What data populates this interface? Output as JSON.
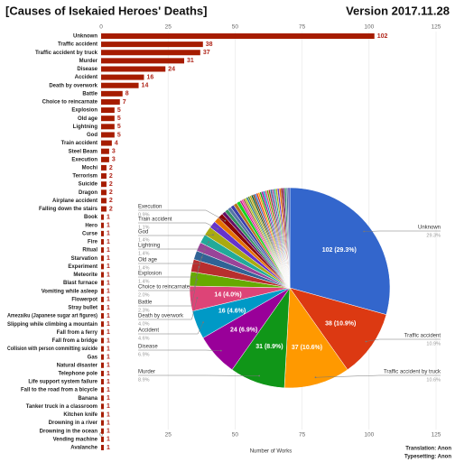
{
  "chart_data": [
    {
      "type": "hbar",
      "title": "[Causes of Isekaied Heroes' Deaths]",
      "subtitle": "Version 2017.11.28",
      "xlabel": "Number of Works",
      "annotations": [
        "Translation: Anon",
        "Typesetting: Anon"
      ],
      "color": "#a61c00",
      "xlim": [
        0,
        125
      ],
      "xticks": [
        0,
        25,
        50,
        75,
        100,
        125
      ],
      "grid": true,
      "categories": [
        "Unknown",
        "Traffic accident",
        "Traffic accident by truck",
        "Murder",
        "Disease",
        "Accident",
        "Death by overwork",
        "Battle",
        "Choice to reincarnate",
        "Explosion",
        "Old age",
        "Lightning",
        "God",
        "Train accident",
        "Steel Beam",
        "Execution",
        "Mochi",
        "Terrorism",
        "Suicide",
        "Dragon",
        "Airplane accident",
        "Falling down the stairs",
        "Book",
        "Hero",
        "Curse",
        "Fire",
        "Ritual",
        "Starvation",
        "Experiment",
        "Meteorite",
        "Blast furnace",
        "Vomiting while asleep",
        "Flowerpot",
        "Stray bullet",
        "Amezaiku (Japanese sugar art figures)",
        "Slipping while climbing a mountain",
        "Fall from a ferry",
        "Fall from a bridge",
        "Collision with person committing suicide",
        "Gas",
        "Natural disaster",
        "Telephone pole",
        "Life support system failure",
        "Fall to the road from a bicycle",
        "Banana",
        "Tanker truck in a classroom",
        "Kitchen knife",
        "Drowning in a river",
        "Drowning in the ocean",
        "Vending machine",
        "Avalanche"
      ],
      "values": [
        102,
        38,
        37,
        31,
        24,
        16,
        14,
        8,
        7,
        5,
        5,
        5,
        5,
        4,
        3,
        3,
        2,
        2,
        2,
        2,
        2,
        2,
        1,
        1,
        1,
        1,
        1,
        1,
        1,
        1,
        1,
        1,
        1,
        1,
        1,
        1,
        1,
        1,
        1,
        1,
        1,
        1,
        1,
        1,
        1,
        1,
        1,
        1,
        1,
        1,
        1
      ]
    },
    {
      "type": "pie",
      "categories": [
        "Unknown",
        "Traffic accident",
        "Traffic accident by truck",
        "Murder",
        "Disease",
        "Accident",
        "Death by overwork",
        "Battle",
        "Choice to reincarnate",
        "Explosion",
        "Old age",
        "Lightning",
        "God",
        "Train accident",
        null,
        "Execution",
        null,
        null,
        null,
        null,
        null,
        null,
        null,
        null,
        null,
        null,
        null,
        null,
        null,
        null,
        null,
        null,
        null,
        null,
        null,
        null,
        null,
        null,
        null,
        null,
        null,
        null,
        null,
        null,
        null,
        null,
        null,
        null,
        null,
        null,
        null
      ],
      "values": [
        102,
        38,
        37,
        31,
        24,
        16,
        14,
        8,
        7,
        5,
        5,
        5,
        5,
        4,
        3,
        3,
        2,
        2,
        2,
        2,
        2,
        2,
        1,
        1,
        1,
        1,
        1,
        1,
        1,
        1,
        1,
        1,
        1,
        1,
        1,
        1,
        1,
        1,
        1,
        1,
        1,
        1,
        1,
        1,
        1,
        1,
        1,
        1,
        1,
        1,
        1
      ],
      "value_labels": [
        "102 (29.3%)",
        "38 (10.9%)",
        "37 (10.6%)",
        "31 (8.9%)",
        "24 (6.9%)",
        "16 (4.6%)",
        "14 (4.0%)",
        null,
        null,
        null,
        null,
        null,
        null,
        null,
        null,
        null,
        null,
        null,
        null,
        null,
        null,
        null,
        null,
        null,
        null,
        null,
        null,
        null,
        null,
        null,
        null,
        null,
        null,
        null,
        null,
        null,
        null,
        null,
        null,
        null,
        null,
        null,
        null,
        null,
        null,
        null,
        null,
        null,
        null,
        null,
        null
      ],
      "percent_labels": [
        "29.3%",
        "10.9%",
        "10.6%",
        "8.9%",
        "6.9%",
        "4.6%",
        "4.0%",
        "2.3%",
        "2.0%",
        "1.4%",
        "1.4%",
        "1.4%",
        "1.4%",
        "1.1%",
        null,
        "0.9%",
        null,
        null,
        null,
        null,
        null,
        null,
        null,
        null,
        null,
        null,
        null,
        null,
        null,
        null,
        null,
        null,
        null,
        null,
        null,
        null,
        null,
        null,
        null,
        null,
        null,
        null,
        null,
        null,
        null,
        null,
        null,
        null,
        null,
        null,
        null
      ],
      "colors": [
        "#3366cc",
        "#dc3912",
        "#ff9900",
        "#109618",
        "#990099",
        "#0099c6",
        "#dd4477",
        "#66aa00",
        "#b82e2e",
        "#316395",
        "#994499",
        "#22aa99",
        "#aaaa11",
        "#6633cc",
        "#e67300",
        "#8b0707",
        "#651067",
        "#329262",
        "#5574a6",
        "#3b3eac",
        "#b77322",
        "#16d620",
        "#b91383",
        "#f4359e",
        "#9c5935",
        "#a9c413",
        "#2a778d",
        "#668d1c",
        "#bea413",
        "#0c5922",
        "#743411",
        "#3366cc",
        "#dc3912",
        "#ff9900",
        "#109618",
        "#990099",
        "#0099c6",
        "#dd4477",
        "#66aa00",
        "#b82e2e",
        "#316395",
        "#994499",
        "#22aa99",
        "#aaaa11",
        "#6633cc",
        "#e67300",
        "#8b0707",
        "#651067",
        "#329262",
        "#5574a6",
        "#3b3eac"
      ]
    }
  ]
}
